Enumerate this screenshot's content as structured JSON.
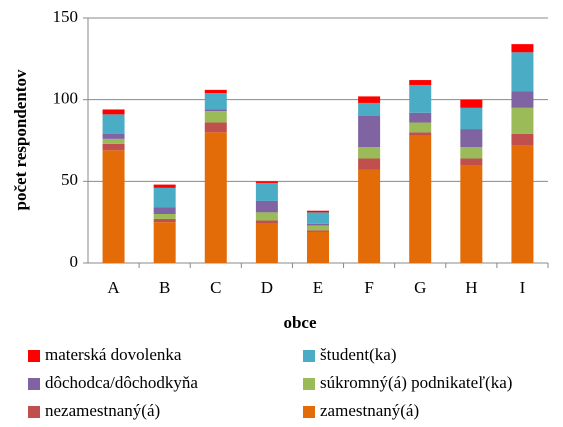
{
  "chart_data": {
    "type": "stacked_bar",
    "x_label": "obce",
    "y_label": "počet respondentov",
    "categories": [
      "A",
      "B",
      "C",
      "D",
      "E",
      "F",
      "G",
      "H",
      "I"
    ],
    "series": [
      {
        "name": "zamestnaný(á)",
        "color": "#e36c09",
        "values": [
          69,
          25,
          80,
          24,
          19,
          57,
          78,
          60,
          72
        ]
      },
      {
        "name": "nezamestnaný(á)",
        "color": "#c0504d",
        "values": [
          4,
          2,
          6,
          2,
          1,
          7,
          2,
          4,
          7
        ]
      },
      {
        "name": "súkromný(á) podnikateľ(ka)",
        "color": "#9bbb59",
        "values": [
          3,
          3,
          7,
          5,
          3,
          7,
          6,
          7,
          16
        ]
      },
      {
        "name": "dôchodca/dôchodkyňa",
        "color": "#8064a2",
        "values": [
          3,
          4,
          1,
          7,
          1,
          19,
          6,
          11,
          10
        ]
      },
      {
        "name": "študent(ka)",
        "color": "#4bacc6",
        "values": [
          12,
          12,
          10,
          11,
          7,
          8,
          17,
          13,
          24
        ]
      },
      {
        "name": "materská dovolenka",
        "color": "#ff0000",
        "values": [
          3,
          2,
          2,
          1,
          1,
          4,
          3,
          5,
          5
        ]
      }
    ],
    "ylim": [
      0,
      150
    ],
    "yticks": [
      0,
      50,
      100,
      150
    ],
    "grid": true
  }
}
